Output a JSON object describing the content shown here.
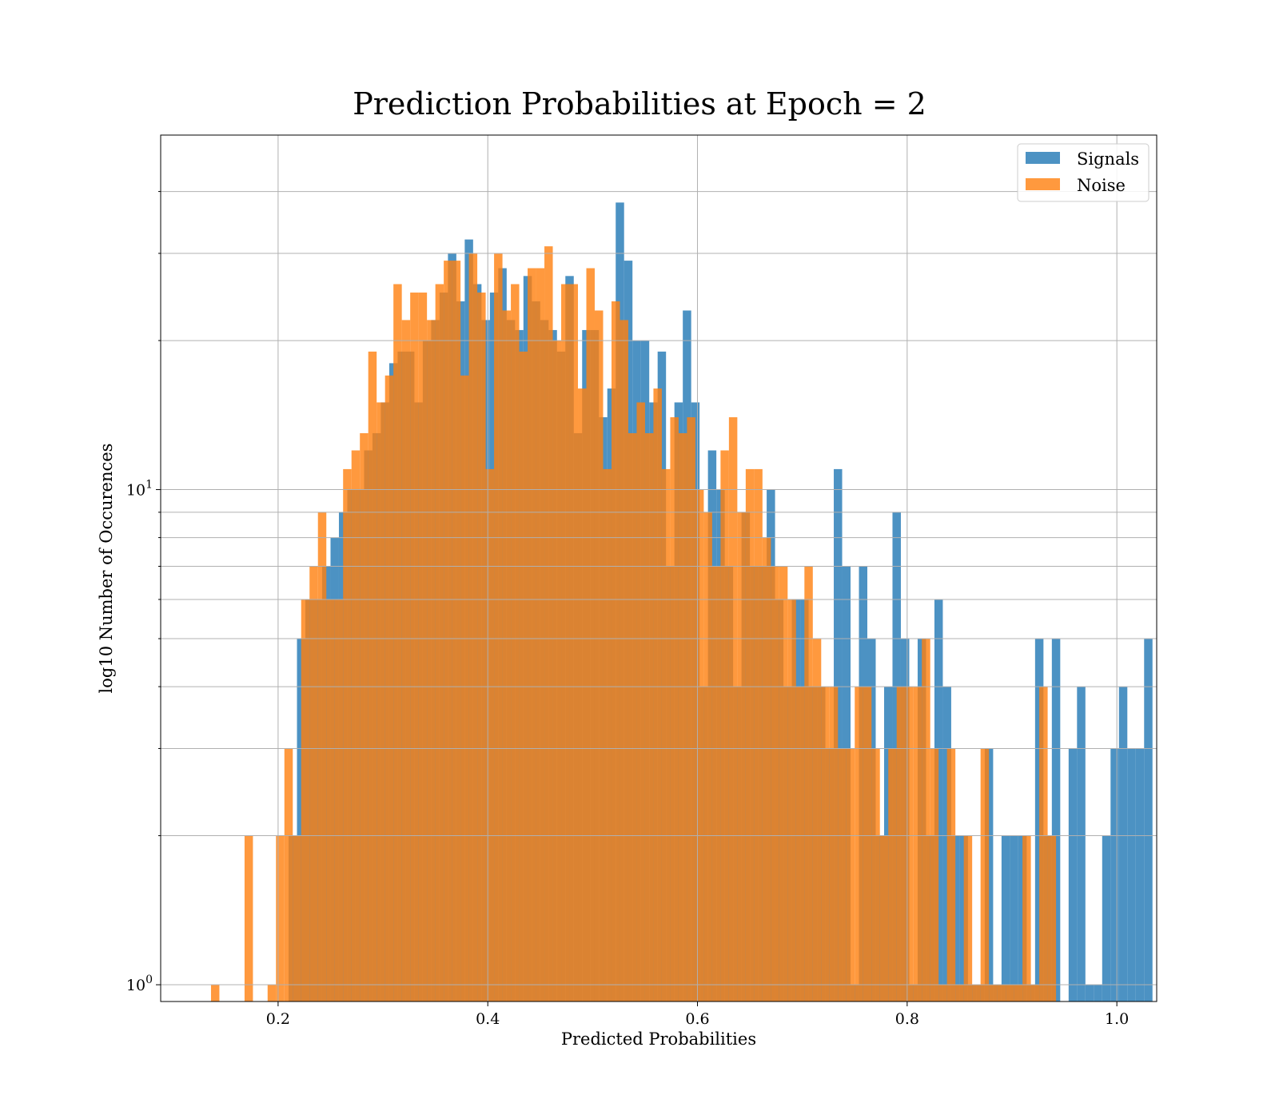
{
  "chart_data": {
    "type": "bar",
    "title": "Prediction Probabilities at Epoch = 2",
    "xlabel": "Predicted Probabilities",
    "ylabel": "log10 Number of Occurences",
    "xlim": [
      0.088,
      1.038
    ],
    "ylim": [
      0.925,
      52
    ],
    "yscale": "log",
    "xticks": [
      0.2,
      0.4,
      0.6,
      0.8,
      1.0
    ],
    "xtick_labels": [
      "0.2",
      "0.4",
      "0.6",
      "0.8",
      "1.0"
    ],
    "yticks": [
      1,
      10
    ],
    "ytick_labels": [
      {
        "base": "10",
        "exp": "0"
      },
      {
        "base": "10",
        "exp": "1"
      }
    ],
    "yminor_ticks": [
      2,
      3,
      4,
      5,
      6,
      7,
      8,
      9,
      20,
      30,
      40
    ],
    "grid": true,
    "legend_position": "top-right",
    "series": [
      {
        "name": "Signals",
        "color": "#1f77b4",
        "bins": [
          [
            0.21,
            0.218,
            2
          ],
          [
            0.218,
            0.226,
            5
          ],
          [
            0.226,
            0.234,
            6
          ],
          [
            0.234,
            0.242,
            6
          ],
          [
            0.242,
            0.25,
            7
          ],
          [
            0.25,
            0.258,
            8
          ],
          [
            0.258,
            0.266,
            9
          ],
          [
            0.266,
            0.274,
            10
          ],
          [
            0.274,
            0.282,
            10
          ],
          [
            0.282,
            0.29,
            12
          ],
          [
            0.29,
            0.298,
            13
          ],
          [
            0.298,
            0.306,
            15
          ],
          [
            0.306,
            0.314,
            18
          ],
          [
            0.314,
            0.322,
            19
          ],
          [
            0.322,
            0.33,
            19
          ],
          [
            0.33,
            0.338,
            15
          ],
          [
            0.338,
            0.346,
            20
          ],
          [
            0.346,
            0.354,
            22
          ],
          [
            0.354,
            0.362,
            25
          ],
          [
            0.362,
            0.37,
            30
          ],
          [
            0.37,
            0.378,
            24
          ],
          [
            0.378,
            0.386,
            32
          ],
          [
            0.386,
            0.394,
            26
          ],
          [
            0.394,
            0.402,
            22
          ],
          [
            0.402,
            0.41,
            25
          ],
          [
            0.41,
            0.418,
            28
          ],
          [
            0.418,
            0.426,
            22
          ],
          [
            0.426,
            0.434,
            21
          ],
          [
            0.434,
            0.442,
            27
          ],
          [
            0.442,
            0.45,
            24
          ],
          [
            0.45,
            0.458,
            22
          ],
          [
            0.458,
            0.466,
            21
          ],
          [
            0.466,
            0.474,
            19
          ],
          [
            0.474,
            0.482,
            27
          ],
          [
            0.482,
            0.49,
            13
          ],
          [
            0.49,
            0.498,
            21
          ],
          [
            0.498,
            0.506,
            21
          ],
          [
            0.506,
            0.514,
            14
          ],
          [
            0.514,
            0.522,
            16
          ],
          [
            0.522,
            0.53,
            38
          ],
          [
            0.53,
            0.538,
            29
          ],
          [
            0.538,
            0.546,
            20
          ],
          [
            0.546,
            0.554,
            20
          ],
          [
            0.554,
            0.562,
            15
          ],
          [
            0.562,
            0.57,
            19
          ],
          [
            0.57,
            0.578,
            7
          ],
          [
            0.578,
            0.586,
            15
          ],
          [
            0.586,
            0.594,
            23
          ],
          [
            0.594,
            0.602,
            15
          ],
          [
            0.602,
            0.61,
            4
          ],
          [
            0.61,
            0.618,
            12
          ],
          [
            0.618,
            0.626,
            10
          ],
          [
            0.626,
            0.634,
            7
          ],
          [
            0.634,
            0.642,
            4
          ],
          [
            0.642,
            0.65,
            9
          ],
          [
            0.65,
            0.658,
            7
          ],
          [
            0.658,
            0.666,
            7
          ],
          [
            0.666,
            0.674,
            10
          ],
          [
            0.674,
            0.682,
            6
          ],
          [
            0.682,
            0.69,
            4
          ],
          [
            0.69,
            0.698,
            6
          ],
          [
            0.698,
            0.706,
            6
          ],
          [
            0.706,
            0.714,
            4
          ],
          [
            0.714,
            0.722,
            4
          ],
          [
            0.722,
            0.73,
            3
          ],
          [
            0.73,
            0.738,
            11
          ],
          [
            0.738,
            0.746,
            7
          ],
          [
            0.746,
            0.754,
            1
          ],
          [
            0.754,
            0.762,
            7
          ],
          [
            0.762,
            0.77,
            5
          ],
          [
            0.77,
            0.778,
            2
          ],
          [
            0.778,
            0.786,
            4
          ],
          [
            0.786,
            0.794,
            9
          ],
          [
            0.794,
            0.802,
            5
          ],
          [
            0.802,
            0.81,
            1
          ],
          [
            0.81,
            0.818,
            5
          ],
          [
            0.818,
            0.826,
            2
          ],
          [
            0.826,
            0.834,
            6
          ],
          [
            0.834,
            0.842,
            4
          ],
          [
            0.842,
            0.85,
            2
          ],
          [
            0.85,
            0.858,
            2
          ],
          [
            0.858,
            0.866,
            1
          ],
          [
            0.866,
            0.874,
            1
          ],
          [
            0.874,
            0.882,
            3
          ],
          [
            0.882,
            0.89,
            1
          ],
          [
            0.89,
            0.898,
            2
          ],
          [
            0.898,
            0.906,
            2
          ],
          [
            0.906,
            0.914,
            2
          ],
          [
            0.914,
            0.922,
            1
          ],
          [
            0.922,
            0.93,
            5
          ],
          [
            0.93,
            0.938,
            2
          ],
          [
            0.938,
            0.946,
            5
          ],
          [
            0.954,
            0.962,
            3
          ],
          [
            0.962,
            0.97,
            4
          ],
          [
            0.97,
            0.978,
            1
          ],
          [
            0.978,
            0.986,
            1
          ],
          [
            0.986,
            0.994,
            2
          ],
          [
            0.994,
            1.002,
            3
          ],
          [
            1.002,
            1.01,
            4
          ],
          [
            1.01,
            1.018,
            3
          ],
          [
            1.018,
            1.026,
            3
          ],
          [
            1.026,
            1.034,
            5
          ]
        ]
      },
      {
        "name": "Noise",
        "color": "#ff7f0e",
        "bins": [
          [
            0.136,
            0.144,
            1
          ],
          [
            0.168,
            0.176,
            2
          ],
          [
            0.19,
            0.198,
            1
          ],
          [
            0.198,
            0.206,
            2
          ],
          [
            0.206,
            0.214,
            3
          ],
          [
            0.214,
            0.222,
            2
          ],
          [
            0.222,
            0.23,
            6
          ],
          [
            0.23,
            0.238,
            7
          ],
          [
            0.238,
            0.246,
            9
          ],
          [
            0.246,
            0.254,
            6
          ],
          [
            0.254,
            0.262,
            6
          ],
          [
            0.262,
            0.27,
            11
          ],
          [
            0.27,
            0.278,
            12
          ],
          [
            0.278,
            0.286,
            13
          ],
          [
            0.286,
            0.294,
            19
          ],
          [
            0.294,
            0.302,
            15
          ],
          [
            0.302,
            0.31,
            17
          ],
          [
            0.31,
            0.318,
            26
          ],
          [
            0.318,
            0.326,
            22
          ],
          [
            0.326,
            0.334,
            25
          ],
          [
            0.334,
            0.342,
            25
          ],
          [
            0.342,
            0.35,
            22
          ],
          [
            0.35,
            0.358,
            26
          ],
          [
            0.358,
            0.366,
            29
          ],
          [
            0.366,
            0.374,
            29
          ],
          [
            0.374,
            0.382,
            17
          ],
          [
            0.382,
            0.39,
            30
          ],
          [
            0.39,
            0.398,
            25
          ],
          [
            0.398,
            0.406,
            11
          ],
          [
            0.406,
            0.414,
            30
          ],
          [
            0.414,
            0.422,
            23
          ],
          [
            0.422,
            0.43,
            26
          ],
          [
            0.43,
            0.438,
            19
          ],
          [
            0.438,
            0.446,
            28
          ],
          [
            0.446,
            0.454,
            28
          ],
          [
            0.454,
            0.462,
            31
          ],
          [
            0.462,
            0.47,
            20
          ],
          [
            0.47,
            0.478,
            26
          ],
          [
            0.478,
            0.486,
            26
          ],
          [
            0.486,
            0.494,
            16
          ],
          [
            0.494,
            0.502,
            28
          ],
          [
            0.502,
            0.51,
            23
          ],
          [
            0.51,
            0.518,
            11
          ],
          [
            0.518,
            0.526,
            24
          ],
          [
            0.526,
            0.534,
            22
          ],
          [
            0.534,
            0.542,
            13
          ],
          [
            0.542,
            0.55,
            15
          ],
          [
            0.55,
            0.558,
            13
          ],
          [
            0.558,
            0.566,
            16
          ],
          [
            0.566,
            0.574,
            11
          ],
          [
            0.574,
            0.582,
            14
          ],
          [
            0.582,
            0.59,
            13
          ],
          [
            0.59,
            0.598,
            14
          ],
          [
            0.598,
            0.606,
            10
          ],
          [
            0.606,
            0.614,
            9
          ],
          [
            0.614,
            0.622,
            7
          ],
          [
            0.622,
            0.63,
            12
          ],
          [
            0.63,
            0.638,
            14
          ],
          [
            0.638,
            0.646,
            9
          ],
          [
            0.646,
            0.654,
            11
          ],
          [
            0.654,
            0.662,
            11
          ],
          [
            0.662,
            0.67,
            8
          ],
          [
            0.67,
            0.678,
            7
          ],
          [
            0.678,
            0.686,
            7
          ],
          [
            0.686,
            0.694,
            6
          ],
          [
            0.694,
            0.702,
            4
          ],
          [
            0.702,
            0.71,
            7
          ],
          [
            0.71,
            0.718,
            5
          ],
          [
            0.718,
            0.726,
            4
          ],
          [
            0.726,
            0.734,
            4
          ],
          [
            0.734,
            0.742,
            3
          ],
          [
            0.742,
            0.75,
            3
          ],
          [
            0.75,
            0.758,
            4
          ],
          [
            0.758,
            0.766,
            4
          ],
          [
            0.766,
            0.774,
            3
          ],
          [
            0.774,
            0.782,
            2
          ],
          [
            0.782,
            0.79,
            3
          ],
          [
            0.79,
            0.798,
            4
          ],
          [
            0.798,
            0.806,
            4
          ],
          [
            0.806,
            0.814,
            4
          ],
          [
            0.814,
            0.822,
            5
          ],
          [
            0.822,
            0.83,
            3
          ],
          [
            0.83,
            0.838,
            1
          ],
          [
            0.838,
            0.846,
            3
          ],
          [
            0.846,
            0.854,
            1
          ],
          [
            0.854,
            0.862,
            2
          ],
          [
            0.862,
            0.87,
            1
          ],
          [
            0.87,
            0.878,
            3
          ],
          [
            0.878,
            0.886,
            1
          ],
          [
            0.886,
            0.894,
            1
          ],
          [
            0.894,
            0.902,
            1
          ],
          [
            0.902,
            0.91,
            1
          ],
          [
            0.91,
            0.918,
            2
          ],
          [
            0.918,
            0.926,
            1
          ],
          [
            0.926,
            0.934,
            4
          ],
          [
            0.934,
            0.942,
            2
          ]
        ]
      }
    ]
  }
}
